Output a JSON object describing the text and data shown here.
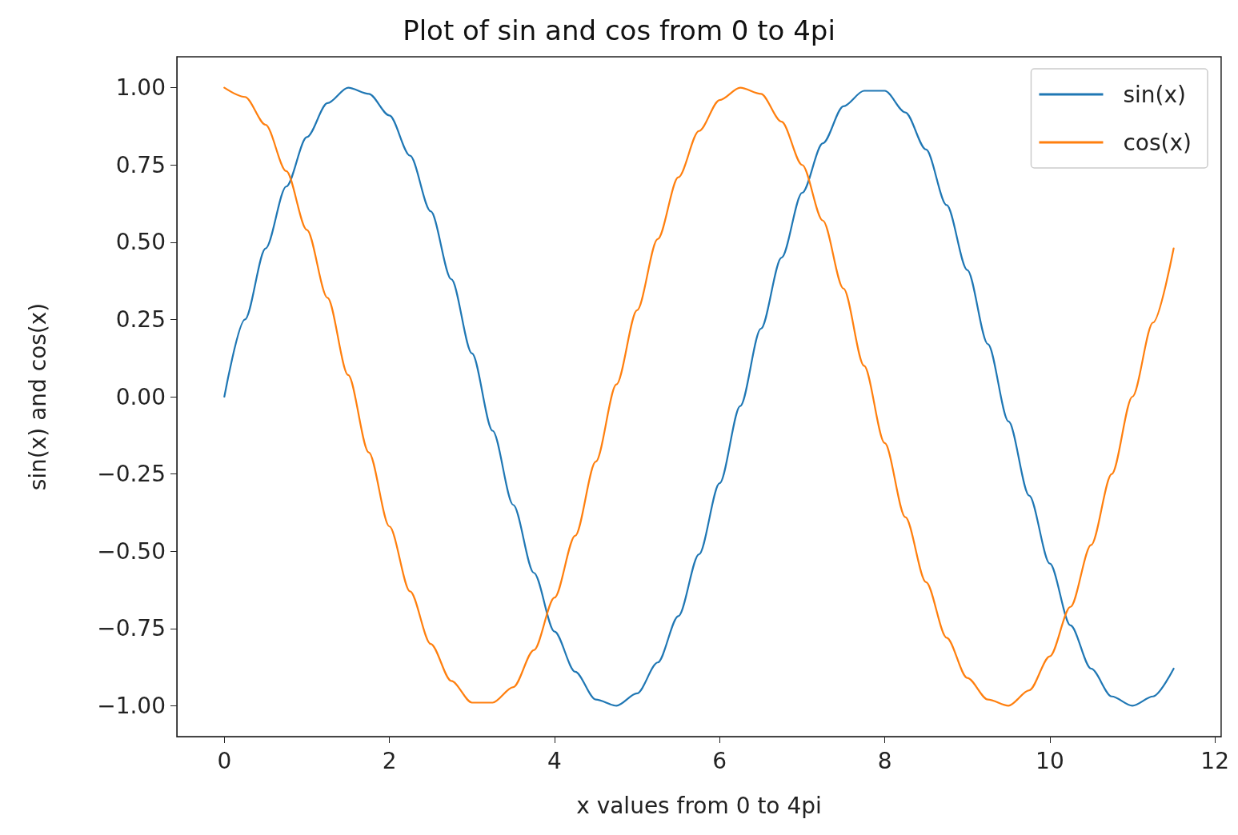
{
  "chart_data": {
    "type": "line",
    "title": "Plot of sin and cos from 0 to 4pi",
    "xlabel": "x values from 0 to 4pi",
    "ylabel": "sin(x) and cos(x)",
    "x": [
      0,
      0.25,
      0.5,
      0.75,
      1,
      1.25,
      1.5,
      1.75,
      2,
      2.25,
      2.5,
      2.75,
      3,
      3.25,
      3.5,
      3.75,
      4,
      4.25,
      4.5,
      4.75,
      5,
      5.25,
      5.5,
      5.75,
      6,
      6.25,
      6.5,
      6.75,
      7,
      7.25,
      7.5,
      7.75,
      8,
      8.25,
      8.5,
      8.75,
      9,
      9.25,
      9.5,
      9.75,
      10,
      10.25,
      10.5,
      10.75,
      11,
      11.25,
      11.5
    ],
    "series": [
      {
        "name": "sin(x)",
        "color": "#1f77b4",
        "values": [
          0.0,
          0.25,
          0.48,
          0.68,
          0.84,
          0.95,
          1.0,
          0.98,
          0.91,
          0.78,
          0.6,
          0.38,
          0.14,
          -0.11,
          -0.35,
          -0.57,
          -0.76,
          -0.89,
          -0.98,
          -1.0,
          -0.96,
          -0.86,
          -0.71,
          -0.51,
          -0.28,
          -0.03,
          0.22,
          0.45,
          0.66,
          0.82,
          0.94,
          0.99,
          0.99,
          0.92,
          0.8,
          0.62,
          0.41,
          0.17,
          -0.08,
          -0.32,
          -0.54,
          -0.74,
          -0.88,
          -0.97,
          -1.0,
          -0.97,
          -0.88
        ]
      },
      {
        "name": "cos(x)",
        "color": "#ff7f0e",
        "values": [
          1.0,
          0.97,
          0.88,
          0.73,
          0.54,
          0.32,
          0.07,
          -0.18,
          -0.42,
          -0.63,
          -0.8,
          -0.92,
          -0.99,
          -0.99,
          -0.94,
          -0.82,
          -0.65,
          -0.45,
          -0.21,
          0.04,
          0.28,
          0.51,
          0.71,
          0.86,
          0.96,
          1.0,
          0.98,
          0.89,
          0.75,
          0.57,
          0.35,
          0.1,
          -0.15,
          -0.39,
          -0.6,
          -0.78,
          -0.91,
          -0.98,
          -1.0,
          -0.95,
          -0.84,
          -0.68,
          -0.48,
          -0.25,
          0.0,
          0.24,
          0.48
        ]
      }
    ],
    "xlim": [
      -0.575,
      12.075
    ],
    "ylim": [
      -1.1,
      1.1
    ],
    "xticks": [
      0,
      2,
      4,
      6,
      8,
      10,
      12
    ],
    "yticks": [
      {
        "value": -1,
        "label": "−1.00"
      },
      {
        "value": -0.75,
        "label": "−0.75"
      },
      {
        "value": -0.5,
        "label": "−0.50"
      },
      {
        "value": -0.25,
        "label": "−0.25"
      },
      {
        "value": 0,
        "label": "0.00"
      },
      {
        "value": 0.25,
        "label": "0.25"
      },
      {
        "value": 0.5,
        "label": "0.50"
      },
      {
        "value": 0.75,
        "label": "0.75"
      },
      {
        "value": 1,
        "label": "1.00"
      }
    ],
    "grid": false,
    "legend": "top right",
    "marker": "none",
    "line_style": "solid"
  }
}
